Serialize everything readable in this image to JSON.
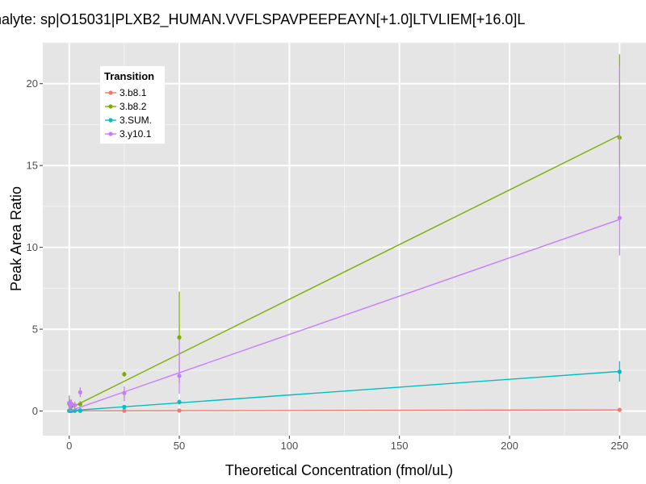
{
  "chart_data": {
    "type": "line",
    "title": "nalyte: sp|O15031|PLXB2_HUMAN.VVFLSPAVPEEPEAYN[+1.0]LTVLIEM[+16.0]L",
    "xlabel": "Theoretical Concentration (fmol/uL)",
    "ylabel": "Peak Area Ratio",
    "xlim": [
      -12,
      262
    ],
    "ylim": [
      -1.5,
      22.5
    ],
    "xticks": [
      0,
      50,
      100,
      150,
      200,
      250
    ],
    "yticks": [
      0,
      5,
      10,
      15,
      20
    ],
    "grid": true,
    "legend": {
      "title": "Transition",
      "placement": "top-left"
    },
    "series": [
      {
        "name": "3.b8.1",
        "color": "#F8766D",
        "points": [
          {
            "x": 0,
            "y": 0.01,
            "lo": 0.0,
            "hi": 0.03
          },
          {
            "x": 0.5,
            "y": 0.01,
            "lo": 0.0,
            "hi": 0.02
          },
          {
            "x": 1,
            "y": 0.01,
            "lo": 0.0,
            "hi": 0.02
          },
          {
            "x": 2.5,
            "y": 0.01,
            "lo": 0.0,
            "hi": 0.02
          },
          {
            "x": 5,
            "y": 0.01,
            "lo": 0.0,
            "hi": 0.02
          },
          {
            "x": 25,
            "y": 0.02,
            "lo": 0.01,
            "hi": 0.03
          },
          {
            "x": 50,
            "y": 0.03,
            "lo": 0.02,
            "hi": 0.05
          },
          {
            "x": 250,
            "y": 0.07,
            "lo": 0.05,
            "hi": 0.09
          }
        ],
        "fit": [
          [
            0,
            0.01
          ],
          [
            250,
            0.07
          ]
        ]
      },
      {
        "name": "3.b8.2",
        "color": "#7CAE00",
        "points": [
          {
            "x": 0,
            "y": 0.45,
            "lo": 0.0,
            "hi": 0.95
          },
          {
            "x": 0.5,
            "y": 0.3,
            "lo": 0.05,
            "hi": 0.6
          },
          {
            "x": 1,
            "y": 0.3,
            "lo": 0.05,
            "hi": 0.55
          },
          {
            "x": 2.5,
            "y": 0.35,
            "lo": 0.15,
            "hi": 0.55
          },
          {
            "x": 5,
            "y": 0.42,
            "lo": 0.3,
            "hi": 0.6
          },
          {
            "x": 25,
            "y": 2.25,
            "lo": 2.1,
            "hi": 2.4
          },
          {
            "x": 50,
            "y": 4.5,
            "lo": 1.7,
            "hi": 7.3
          },
          {
            "x": 250,
            "y": 16.7,
            "lo": 15.0,
            "hi": 21.8
          }
        ],
        "fit": [
          [
            0,
            0.15
          ],
          [
            250,
            16.85
          ]
        ]
      },
      {
        "name": "3.SUM.",
        "color": "#00BFC4",
        "points": [
          {
            "x": 0,
            "y": 0.02,
            "lo": 0.0,
            "hi": 0.06
          },
          {
            "x": 0.5,
            "y": 0.02,
            "lo": 0.0,
            "hi": 0.05
          },
          {
            "x": 1,
            "y": 0.02,
            "lo": 0.0,
            "hi": 0.05
          },
          {
            "x": 2.5,
            "y": 0.03,
            "lo": 0.01,
            "hi": 0.06
          },
          {
            "x": 5,
            "y": 0.04,
            "lo": 0.02,
            "hi": 0.07
          },
          {
            "x": 25,
            "y": 0.25,
            "lo": 0.2,
            "hi": 0.3
          },
          {
            "x": 50,
            "y": 0.55,
            "lo": 0.4,
            "hi": 0.7
          },
          {
            "x": 250,
            "y": 2.4,
            "lo": 1.8,
            "hi": 3.05
          }
        ],
        "fit": [
          [
            0,
            0.02
          ],
          [
            250,
            2.42
          ]
        ]
      },
      {
        "name": "3.y10.1",
        "color": "#C77CFF",
        "points": [
          {
            "x": 0,
            "y": 0.5,
            "lo": 0.1,
            "hi": 0.9
          },
          {
            "x": 0.5,
            "y": 0.4,
            "lo": 0.1,
            "hi": 0.7
          },
          {
            "x": 1,
            "y": 0.45,
            "lo": 0.2,
            "hi": 0.7
          },
          {
            "x": 2.5,
            "y": 0.35,
            "lo": 0.2,
            "hi": 0.5
          },
          {
            "x": 5,
            "y": 1.15,
            "lo": 0.85,
            "hi": 1.45
          },
          {
            "x": 25,
            "y": 1.1,
            "lo": 0.6,
            "hi": 1.5
          },
          {
            "x": 50,
            "y": 2.15,
            "lo": 1.05,
            "hi": 4.3
          },
          {
            "x": 250,
            "y": 11.8,
            "lo": 9.5,
            "hi": 21.1
          }
        ],
        "fit": [
          [
            0,
            0.0
          ],
          [
            250,
            11.7
          ]
        ]
      }
    ]
  }
}
